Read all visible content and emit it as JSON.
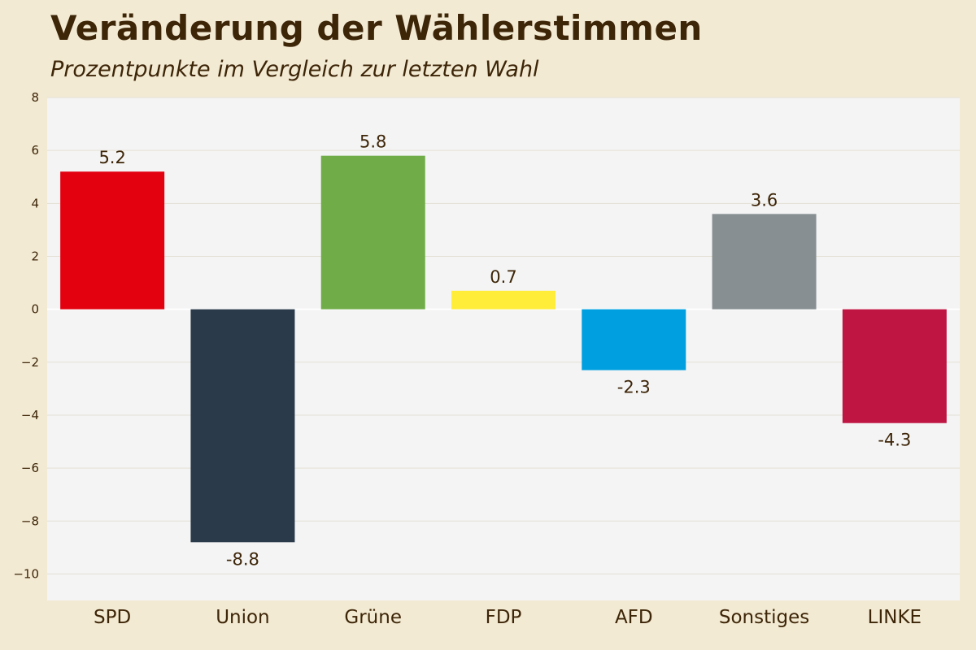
{
  "chart_data": {
    "type": "bar",
    "title": "Veränderung der Wählerstimmen",
    "subtitle": "Prozentpunkte im Vergleich zur letzten Wahl",
    "categories": [
      "SPD",
      "Union",
      "Grüne",
      "FDP",
      "AFD",
      "Sonstiges",
      "LINKE"
    ],
    "values": [
      5.2,
      -8.8,
      5.8,
      0.7,
      -2.3,
      3.6,
      -4.3
    ],
    "value_labels": [
      "5.2",
      "-8.8",
      "5.8",
      "0.7",
      "-2.3",
      "3.6",
      "-4.3"
    ],
    "colors": [
      "#e3000f",
      "#2a3a4a",
      "#70ac48",
      "#ffed3a",
      "#00a0e0",
      "#878f92",
      "#be1542"
    ],
    "ylim": [
      -11,
      8
    ],
    "yticks": [
      8,
      6,
      4,
      2,
      0,
      -2,
      -4,
      -6,
      -8,
      -10
    ],
    "ytick_labels": [
      "8",
      "6",
      "4",
      "2",
      "0",
      "−2",
      "−4",
      "−6",
      "−8",
      "−10"
    ],
    "grid": true,
    "plot_background": "#f4f4f4",
    "grid_color": "#e3e0d4"
  }
}
